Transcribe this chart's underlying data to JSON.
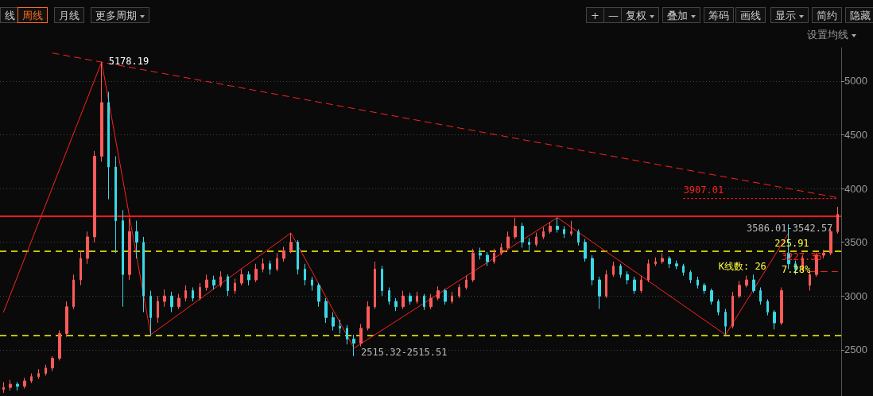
{
  "chart_data": [
    {
      "type": "candlestick",
      "categories": [
        null,
        null,
        null,
        null,
        null,
        null,
        null,
        null,
        null,
        null,
        null,
        null,
        null,
        null,
        null,
        null,
        null,
        null,
        null,
        null,
        null,
        null,
        null,
        null,
        null,
        null,
        null,
        null,
        null,
        null,
        null,
        null,
        null,
        null,
        null,
        null,
        null,
        null,
        null,
        null,
        null,
        null,
        null,
        null,
        null,
        null,
        null,
        null,
        null,
        null,
        null,
        null,
        null,
        null,
        null,
        null,
        null,
        null,
        null,
        null,
        null,
        null,
        null,
        null,
        null,
        null,
        null,
        null,
        null,
        null,
        null,
        null,
        null,
        null,
        null,
        null,
        null,
        null,
        null,
        null,
        null,
        null,
        null,
        null,
        null,
        null,
        null,
        null,
        null,
        null,
        null,
        null,
        null,
        null,
        null,
        null,
        null,
        null,
        null,
        null,
        null,
        null,
        null,
        null,
        null,
        null,
        null,
        null,
        null,
        null,
        null,
        null,
        null,
        null,
        null,
        null,
        null,
        null,
        null,
        null
      ],
      "ohlc": [
        [
          2130,
          2200,
          2100,
          2150
        ],
        [
          2150,
          2220,
          2120,
          2180
        ],
        [
          2180,
          2200,
          2120,
          2160
        ],
        [
          2160,
          2240,
          2140,
          2210
        ],
        [
          2210,
          2280,
          2190,
          2250
        ],
        [
          2250,
          2320,
          2230,
          2280
        ],
        [
          2280,
          2360,
          2260,
          2330
        ],
        [
          2330,
          2440,
          2300,
          2420
        ],
        [
          2420,
          2680,
          2400,
          2650
        ],
        [
          2650,
          2950,
          2620,
          2900
        ],
        [
          2900,
          3200,
          2880,
          3150
        ],
        [
          3150,
          3420,
          3100,
          3350
        ],
        [
          3350,
          3600,
          3300,
          3550
        ],
        [
          3550,
          4350,
          3500,
          4300
        ],
        [
          4300,
          5178.19,
          4250,
          4800
        ],
        [
          4800,
          4900,
          3900,
          4200
        ],
        [
          4200,
          4300,
          3400,
          3700
        ],
        [
          3700,
          3800,
          2900,
          3200
        ],
        [
          3200,
          3720,
          3150,
          3600
        ],
        [
          3600,
          3700,
          3350,
          3500
        ],
        [
          3500,
          3550,
          2850,
          3000
        ],
        [
          3000,
          3050,
          2640,
          2800
        ],
        [
          2800,
          3000,
          2750,
          2950
        ],
        [
          2950,
          3060,
          2900,
          3000
        ],
        [
          3000,
          3040,
          2850,
          2900
        ],
        [
          2900,
          3020,
          2880,
          2980
        ],
        [
          2980,
          3100,
          2950,
          3050
        ],
        [
          3050,
          3080,
          2950,
          2980
        ],
        [
          2980,
          3120,
          2960,
          3080
        ],
        [
          3080,
          3200,
          3050,
          3150
        ],
        [
          3150,
          3190,
          3060,
          3100
        ],
        [
          3100,
          3230,
          3080,
          3180
        ],
        [
          3180,
          3200,
          3000,
          3050
        ],
        [
          3050,
          3160,
          3020,
          3120
        ],
        [
          3120,
          3250,
          3100,
          3200
        ],
        [
          3200,
          3230,
          3100,
          3150
        ],
        [
          3150,
          3300,
          3130,
          3250
        ],
        [
          3250,
          3350,
          3220,
          3300
        ],
        [
          3300,
          3330,
          3200,
          3250
        ],
        [
          3250,
          3400,
          3230,
          3350
        ],
        [
          3350,
          3460,
          3320,
          3420
        ],
        [
          3420,
          3587,
          3400,
          3500
        ],
        [
          3500,
          3520,
          3200,
          3250
        ],
        [
          3250,
          3300,
          3100,
          3150
        ],
        [
          3150,
          3180,
          3050,
          3100
        ],
        [
          3100,
          3120,
          2900,
          2950
        ],
        [
          2950,
          2980,
          2750,
          2800
        ],
        [
          2800,
          2850,
          2680,
          2720
        ],
        [
          2720,
          2780,
          2650,
          2700
        ],
        [
          2700,
          2730,
          2550,
          2600
        ],
        [
          2600,
          2640,
          2440,
          2560
        ],
        [
          2560,
          2740,
          2530,
          2700
        ],
        [
          2700,
          2950,
          2680,
          2900
        ],
        [
          2900,
          3320,
          2880,
          3250
        ],
        [
          3250,
          3280,
          3000,
          3050
        ],
        [
          3050,
          3080,
          2920,
          2950
        ],
        [
          2950,
          2980,
          2860,
          2900
        ],
        [
          2900,
          3050,
          2880,
          3000
        ],
        [
          3000,
          3030,
          2920,
          2950
        ],
        [
          2950,
          3040,
          2930,
          3000
        ],
        [
          3000,
          3020,
          2870,
          2900
        ],
        [
          2900,
          3020,
          2880,
          2980
        ],
        [
          2980,
          3090,
          2960,
          3050
        ],
        [
          3050,
          3070,
          2920,
          2950
        ],
        [
          2950,
          3040,
          2930,
          3000
        ],
        [
          3000,
          3110,
          2980,
          3080
        ],
        [
          3080,
          3190,
          3060,
          3150
        ],
        [
          3150,
          3440,
          3130,
          3400
        ],
        [
          3400,
          3450,
          3340,
          3380
        ],
        [
          3380,
          3410,
          3280,
          3320
        ],
        [
          3320,
          3440,
          3300,
          3400
        ],
        [
          3400,
          3490,
          3380,
          3450
        ],
        [
          3450,
          3600,
          3430,
          3550
        ],
        [
          3550,
          3730,
          3530,
          3650
        ],
        [
          3650,
          3680,
          3450,
          3500
        ],
        [
          3500,
          3540,
          3420,
          3480
        ],
        [
          3480,
          3590,
          3460,
          3550
        ],
        [
          3550,
          3640,
          3530,
          3600
        ],
        [
          3600,
          3690,
          3580,
          3650
        ],
        [
          3650,
          3730,
          3590,
          3620
        ],
        [
          3620,
          3650,
          3540,
          3580
        ],
        [
          3580,
          3700,
          3560,
          3600
        ],
        [
          3600,
          3620,
          3470,
          3500
        ],
        [
          3500,
          3530,
          3320,
          3350
        ],
        [
          3350,
          3380,
          3100,
          3150
        ],
        [
          3150,
          3180,
          2880,
          3000
        ],
        [
          3000,
          3240,
          2980,
          3200
        ],
        [
          3200,
          3320,
          3180,
          3280
        ],
        [
          3280,
          3300,
          3170,
          3200
        ],
        [
          3200,
          3230,
          3110,
          3150
        ],
        [
          3150,
          3180,
          3020,
          3050
        ],
        [
          3050,
          3190,
          3030,
          3150
        ],
        [
          3150,
          3340,
          3130,
          3300
        ],
        [
          3300,
          3360,
          3280,
          3320
        ],
        [
          3320,
          3400,
          3300,
          3350
        ],
        [
          3350,
          3370,
          3260,
          3300
        ],
        [
          3300,
          3330,
          3250,
          3280
        ],
        [
          3280,
          3300,
          3190,
          3220
        ],
        [
          3220,
          3240,
          3120,
          3150
        ],
        [
          3150,
          3180,
          3070,
          3100
        ],
        [
          3100,
          3120,
          3020,
          3050
        ],
        [
          3050,
          3070,
          2920,
          2950
        ],
        [
          2950,
          2970,
          2820,
          2850
        ],
        [
          2850,
          2880,
          2640,
          2720
        ],
        [
          2720,
          3040,
          2700,
          3000
        ],
        [
          3000,
          3140,
          2980,
          3100
        ],
        [
          3100,
          3190,
          3080,
          3150
        ],
        [
          3150,
          3200,
          3030,
          3050
        ],
        [
          3050,
          3080,
          2920,
          2950
        ],
        [
          2950,
          2970,
          2820,
          2850
        ],
        [
          2850,
          2870,
          2690,
          2750
        ],
        [
          2750,
          3080,
          2730,
          3050
        ],
        [
          3400,
          3668,
          3250,
          3300
        ],
        [
          3300,
          3330,
          3200,
          3250
        ],
        [
          3250,
          3380,
          3230,
          3350
        ],
        [
          3100,
          3230,
          3050,
          3200
        ],
        [
          3200,
          3400,
          3180,
          3380
        ],
        [
          3380,
          3430,
          3350,
          3400
        ],
        [
          3400,
          3620,
          3380,
          3600
        ],
        [
          3600,
          3830,
          3580,
          3760
        ]
      ],
      "colors": [
        "#ff5a5a",
        "#ff5a5a",
        "#3ad8e6",
        "#ff5a5a",
        "#ff5a5a",
        "#ff5a5a",
        "#ff5a5a",
        "#ff5a5a",
        "#ff5a5a",
        "#ff5a5a",
        "#ff5a5a",
        "#ff5a5a",
        "#ff5a5a",
        "#ff5a5a",
        "#ff5a5a",
        "#3ad8e6",
        "#3ad8e6",
        "#3ad8e6",
        "#ff5a5a",
        "#3ad8e6",
        "#3ad8e6",
        "#3ad8e6",
        "#ff5a5a",
        "#ff5a5a",
        "#3ad8e6",
        "#ff5a5a",
        "#ff5a5a",
        "#3ad8e6",
        "#ff5a5a",
        "#ff5a5a",
        "#3ad8e6",
        "#ff5a5a",
        "#3ad8e6",
        "#ff5a5a",
        "#ff5a5a",
        "#3ad8e6",
        "#ff5a5a",
        "#ff5a5a",
        "#3ad8e6",
        "#ff5a5a",
        "#ff5a5a",
        "#ff5a5a",
        "#3ad8e6",
        "#3ad8e6",
        "#3ad8e6",
        "#3ad8e6",
        "#3ad8e6",
        "#3ad8e6",
        "#3ad8e6",
        "#3ad8e6",
        "#3ad8e6",
        "#ff5a5a",
        "#ff5a5a",
        "#ff5a5a",
        "#3ad8e6",
        "#3ad8e6",
        "#3ad8e6",
        "#ff5a5a",
        "#3ad8e6",
        "#ff5a5a",
        "#3ad8e6",
        "#ff5a5a",
        "#ff5a5a",
        "#3ad8e6",
        "#ff5a5a",
        "#ff5a5a",
        "#ff5a5a",
        "#ff5a5a",
        "#3ad8e6",
        "#3ad8e6",
        "#ff5a5a",
        "#ff5a5a",
        "#ff5a5a",
        "#ff5a5a",
        "#3ad8e6",
        "#3ad8e6",
        "#ff5a5a",
        "#ff5a5a",
        "#ff5a5a",
        "#3ad8e6",
        "#3ad8e6",
        "#ff5a5a",
        "#3ad8e6",
        "#3ad8e6",
        "#3ad8e6",
        "#3ad8e6",
        "#ff5a5a",
        "#ff5a5a",
        "#3ad8e6",
        "#3ad8e6",
        "#3ad8e6",
        "#ff5a5a",
        "#ff5a5a",
        "#ff5a5a",
        "#ff5a5a",
        "#3ad8e6",
        "#3ad8e6",
        "#3ad8e6",
        "#3ad8e6",
        "#3ad8e6",
        "#3ad8e6",
        "#3ad8e6",
        "#3ad8e6",
        "#3ad8e6",
        "#ff5a5a",
        "#ff5a5a",
        "#ff5a5a",
        "#3ad8e6",
        "#3ad8e6",
        "#3ad8e6",
        "#3ad8e6",
        "#ff5a5a",
        "#3ad8e6",
        "#3ad8e6",
        "#ff5a5a",
        "#ff5a5a",
        "#ff5a5a",
        "#ff5a5a",
        "#ff5a5a",
        "#ff5a5a"
      ],
      "series": [
        {
          "type": "line",
          "values": [
            2850,
            null,
            null,
            null,
            null,
            null,
            null,
            null,
            null,
            null,
            null,
            null,
            null,
            null,
            5178,
            null,
            null,
            null,
            null,
            null,
            null,
            2640,
            null,
            null,
            null,
            null,
            null,
            null,
            null,
            null,
            null,
            null,
            null,
            null,
            null,
            null,
            null,
            null,
            null,
            null,
            null,
            3587,
            null,
            null,
            null,
            null,
            null,
            null,
            null,
            null,
            2515,
            null,
            null,
            null,
            null,
            null,
            null,
            null,
            null,
            null,
            null,
            null,
            null,
            null,
            null,
            null,
            null,
            null,
            null,
            null,
            null,
            null,
            null,
            null,
            null,
            null,
            null,
            null,
            null,
            3730,
            null,
            null,
            null,
            null,
            null,
            null,
            null,
            null,
            null,
            null,
            null,
            null,
            null,
            null,
            null,
            null,
            null,
            null,
            null,
            null,
            null,
            null,
            null,
            2640,
            null,
            null,
            null,
            null,
            null,
            null,
            null,
            null,
            3586,
            null,
            null,
            null,
            null,
            null,
            null,
            null
          ],
          "color": "#ff2020",
          "line_style": "solid"
        },
        {
          "type": "line",
          "values": [
            null,
            null,
            null,
            null,
            null,
            null,
            null,
            5260,
            null,
            null,
            null,
            null,
            null,
            null,
            null,
            null,
            null,
            null,
            null,
            null,
            null,
            null,
            null,
            null,
            null,
            null,
            null,
            null,
            null,
            null,
            null,
            null,
            null,
            null,
            null,
            null,
            null,
            null,
            null,
            null,
            null,
            null,
            null,
            null,
            null,
            null,
            null,
            null,
            null,
            null,
            null,
            null,
            null,
            null,
            null,
            null,
            null,
            null,
            null,
            null,
            null,
            null,
            null,
            null,
            null,
            null,
            null,
            null,
            null,
            null,
            null,
            null,
            null,
            null,
            null,
            null,
            null,
            null,
            null,
            null,
            null,
            null,
            null,
            null,
            null,
            null,
            null,
            null,
            null,
            null,
            null,
            null,
            null,
            null,
            null,
            null,
            null,
            null,
            null,
            null,
            null,
            null,
            null,
            null,
            null,
            null,
            null,
            null,
            null,
            null,
            null,
            null,
            null,
            null,
            null,
            null,
            null,
            null,
            null,
            3915
          ],
          "color": "#ff2020",
          "line_style": "dashed"
        },
        {
          "type": "line",
          "values": [
            null,
            null,
            null,
            null,
            null,
            null,
            null,
            null,
            null,
            null,
            null,
            null,
            null,
            null,
            null,
            null,
            null,
            null,
            null,
            null,
            null,
            null,
            null,
            null,
            null,
            null,
            null,
            null,
            null,
            null,
            null,
            null,
            null,
            null,
            null,
            null,
            null,
            null,
            null,
            null,
            null,
            null,
            null,
            null,
            null,
            null,
            null,
            null,
            null,
            null,
            null,
            null,
            null,
            null,
            null,
            null,
            null,
            null,
            null,
            null,
            null,
            null,
            null,
            null,
            null,
            null,
            null,
            null,
            null,
            null,
            null,
            null,
            null,
            null,
            null,
            null,
            null,
            null,
            null,
            null,
            null,
            null,
            null,
            null,
            null,
            null,
            null,
            null,
            null,
            null,
            null,
            null,
            null,
            null,
            null,
            null,
            null,
            3907,
            null,
            null,
            null,
            null,
            null,
            null,
            null,
            null,
            null,
            null,
            null,
            null,
            null,
            null,
            null,
            null,
            null,
            null,
            null,
            null,
            null,
            3907
          ],
          "color": "#ff2020",
          "line_style": "dotted"
        },
        {
          "type": "line",
          "values": [
            null,
            null,
            null,
            null,
            null,
            null,
            null,
            null,
            null,
            null,
            null,
            null,
            null,
            null,
            null,
            null,
            null,
            null,
            null,
            null,
            null,
            null,
            null,
            null,
            null,
            null,
            null,
            null,
            null,
            null,
            null,
            null,
            null,
            null,
            null,
            null,
            null,
            null,
            null,
            null,
            null,
            null,
            null,
            null,
            null,
            null,
            null,
            null,
            null,
            null,
            null,
            null,
            null,
            null,
            null,
            null,
            null,
            null,
            null,
            null,
            null,
            null,
            null,
            null,
            null,
            null,
            null,
            null,
            null,
            null,
            null,
            null,
            null,
            null,
            null,
            null,
            null,
            null,
            null,
            null,
            null,
            null,
            null,
            null,
            null,
            null,
            null,
            null,
            null,
            null,
            null,
            null,
            null,
            null,
            null,
            null,
            null,
            null,
            null,
            null,
            null,
            null,
            null,
            null,
            null,
            null,
            null,
            null,
            null,
            null,
            null,
            null,
            null,
            null,
            null,
            3227,
            null,
            null,
            null,
            3227
          ],
          "color": "#ff2020",
          "line_style": "dashed"
        }
      ],
      "ref_lines": [
        {
          "axis": "y",
          "value": 3742,
          "color": "#ff1a1a",
          "line_style": "solid"
        },
        {
          "axis": "y",
          "value": 3417,
          "color": "#ffff00",
          "line_style": "dashed"
        },
        {
          "axis": "y",
          "value": 2634,
          "color": "#ffff00",
          "line_style": "dashed"
        }
      ],
      "annotations": [
        "5178.19",
        "2515.32-2515.51",
        "3907.01",
        "3586.01-3542.57",
        "225.91",
        "3227.36",
        "K线数: 26",
        "7.28%"
      ],
      "ylim": [
        2070,
        5310
      ],
      "yticks": [
        2500,
        3000,
        3500,
        4000,
        4500,
        5000
      ],
      "grid": "y",
      "tick_labels": "y"
    },
    {
      "type": "other",
      "annotations": [
        "线",
        "周线",
        "月线",
        "更多周期",
        "+",
        "—",
        "复权",
        "叠加",
        "筹码",
        "画线",
        "显示",
        "简约",
        "隐藏",
        "设置均线"
      ]
    }
  ]
}
